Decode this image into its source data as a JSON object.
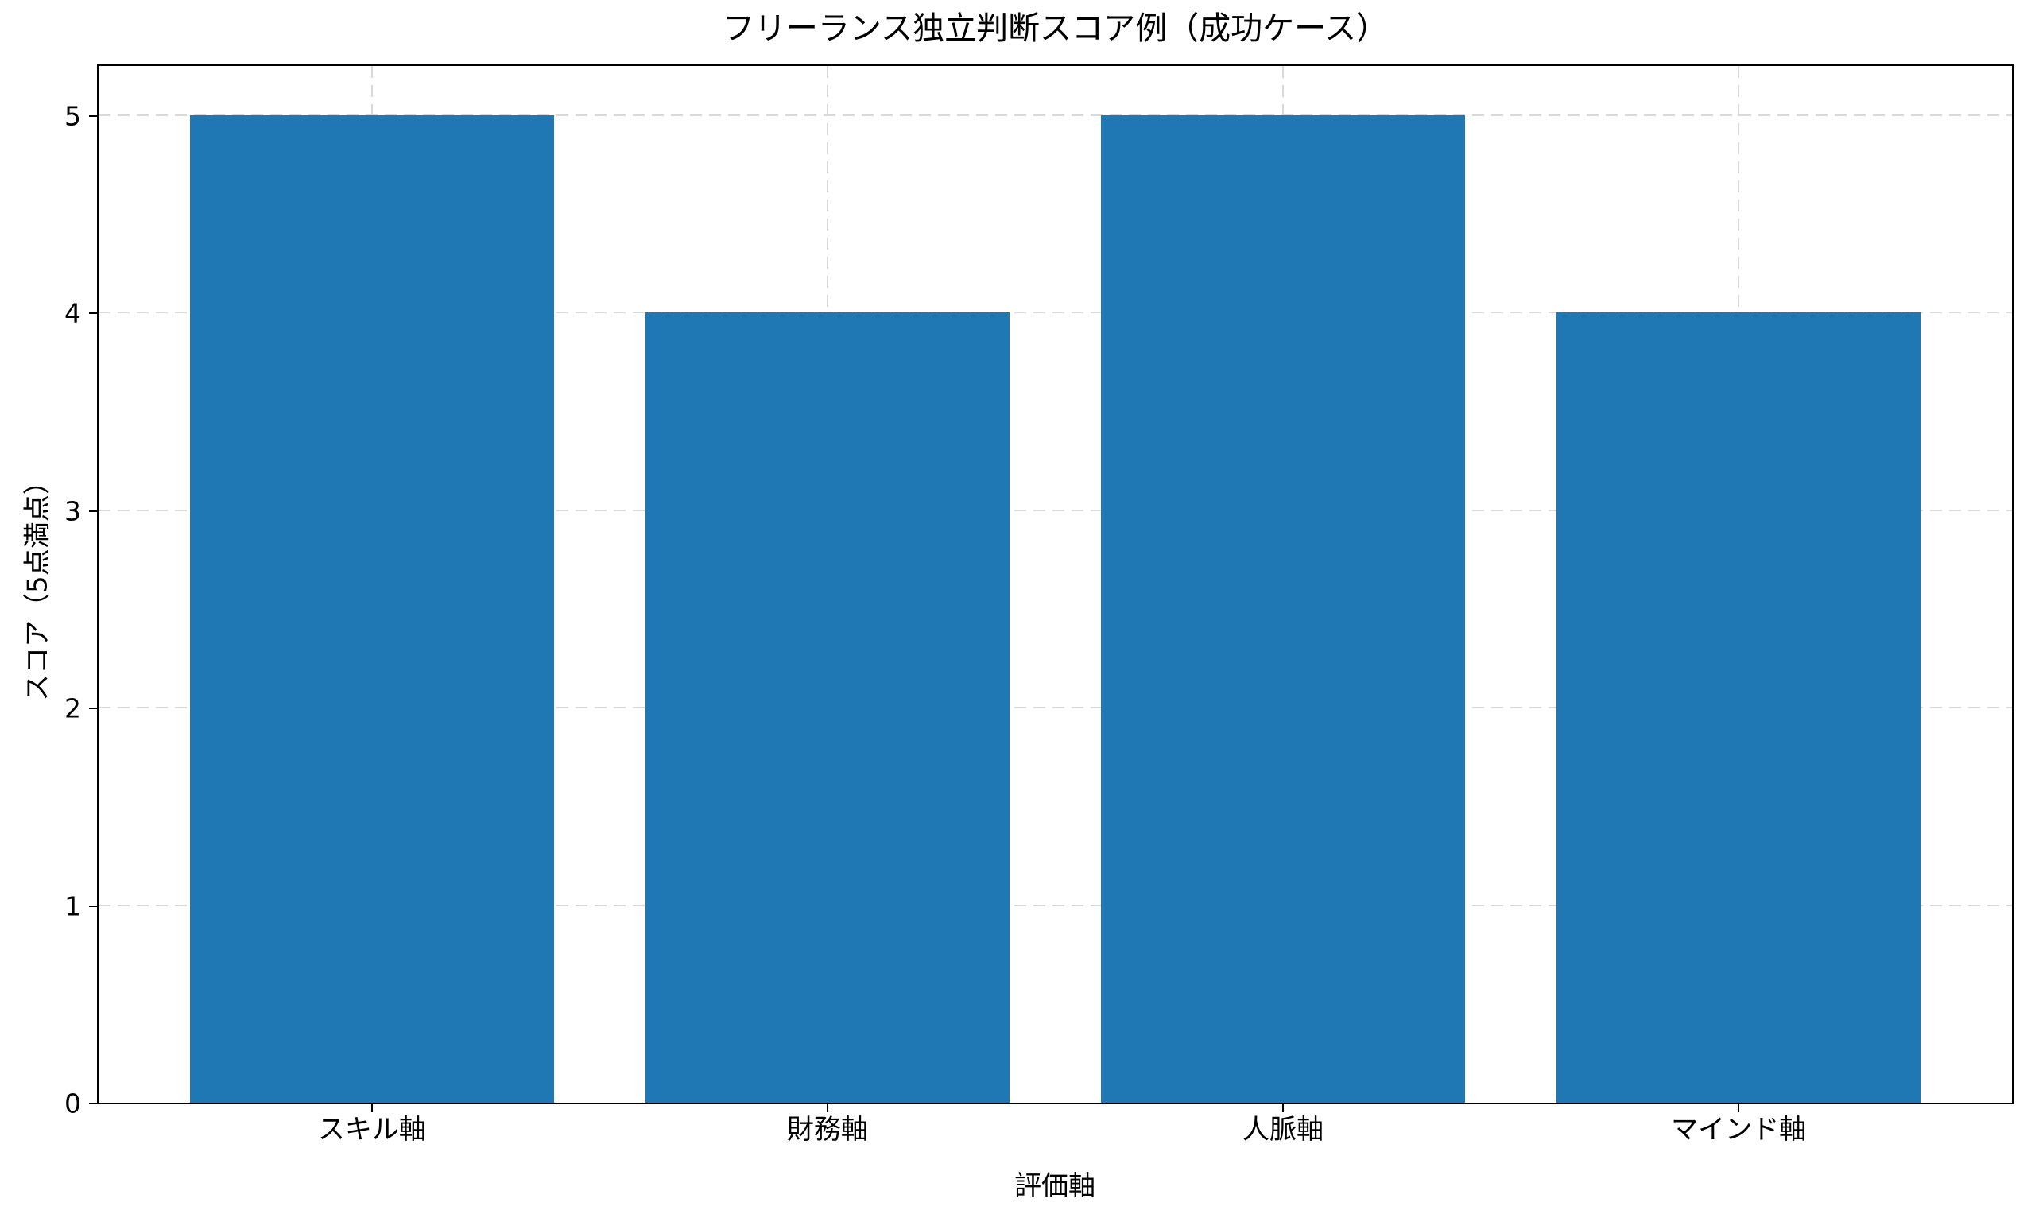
{
  "figure": {
    "background": "#ffffff"
  },
  "chart_data": {
    "type": "bar",
    "title": "フリーランス独立判断スコア例（成功ケース）",
    "xlabel": "評価軸",
    "ylabel": "スコア（5点満点）",
    "categories": [
      "スキル軸",
      "財務軸",
      "人脈軸",
      "マインド軸"
    ],
    "values": [
      5,
      4,
      5,
      4
    ],
    "yticks": [
      "0",
      "1",
      "2",
      "3",
      "4",
      "5"
    ],
    "ylim": [
      0,
      5.25
    ],
    "xlim": [
      -0.6,
      3.6
    ],
    "bar_width": 0.8,
    "grid": "both-dashed-behind-bars",
    "legend": "none",
    "colors": {
      "bar": "#1f77b4",
      "grid": "#d9d9d9",
      "spine": "#000000",
      "text": "#000000"
    }
  }
}
